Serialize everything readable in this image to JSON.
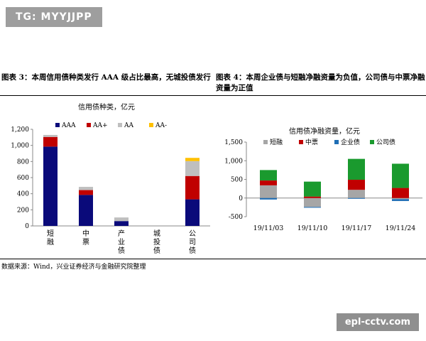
{
  "watermark_top": "TG: MYYJJPP",
  "watermark_bottom": "epl-cctv.com",
  "captions": {
    "left": "图表 3：本周信用债种类发行 AAA 级占比最高，无城投债发行",
    "right": "图表 4：本周企业债与短融净融资量为负值，公司债与中票净融资量为正值"
  },
  "source": "数据来源：Wind，兴业证券经济与金融研究院整理",
  "colors": {
    "AAA": "#0a0a7a",
    "AA+": "#c00000",
    "AA": "#bfbfbf",
    "AA-": "#ffc000",
    "短融": "#a6a6a6",
    "中票": "#c00000",
    "企业债": "#1f6eb5",
    "公司债": "#1a9a2e"
  },
  "chart_data": [
    {
      "type": "bar",
      "stacked": true,
      "title": "信用债种类，亿元",
      "categories": [
        "短融",
        "中票",
        "产业债",
        "城投债",
        "公司债"
      ],
      "ylim": [
        0,
        1200
      ],
      "yticks": [
        "0",
        "200",
        "400",
        "600",
        "800",
        "1,000",
        "1,200"
      ],
      "ytick_values": [
        0,
        200,
        400,
        600,
        800,
        1000,
        1200
      ],
      "legend": "top",
      "series": [
        {
          "name": "AAA",
          "values": [
            985,
            385,
            60,
            0,
            330
          ]
        },
        {
          "name": "AA+",
          "values": [
            120,
            60,
            0,
            0,
            290
          ]
        },
        {
          "name": "AA",
          "values": [
            25,
            40,
            45,
            0,
            185
          ]
        },
        {
          "name": "AA-",
          "values": [
            0,
            0,
            0,
            0,
            40
          ]
        }
      ]
    },
    {
      "type": "bar",
      "stacked": true,
      "title": "信用债净融资量，亿元",
      "categories": [
        "19/11/03",
        "19/11/10",
        "19/11/17",
        "19/11/24"
      ],
      "ylim": [
        -500,
        1500
      ],
      "yticks": [
        "-500",
        "0",
        "500",
        "1,000",
        "1,500"
      ],
      "ytick_values": [
        -500,
        0,
        500,
        1000,
        1500
      ],
      "legend": "top",
      "series": [
        {
          "name": "短融",
          "values": [
            340,
            -240,
            220,
            -30
          ]
        },
        {
          "name": "中票",
          "values": [
            130,
            40,
            270,
            270
          ]
        },
        {
          "name": "企业债",
          "values": [
            -40,
            -20,
            -20,
            -50
          ]
        },
        {
          "name": "公司债",
          "values": [
            280,
            400,
            560,
            650
          ]
        }
      ]
    }
  ]
}
